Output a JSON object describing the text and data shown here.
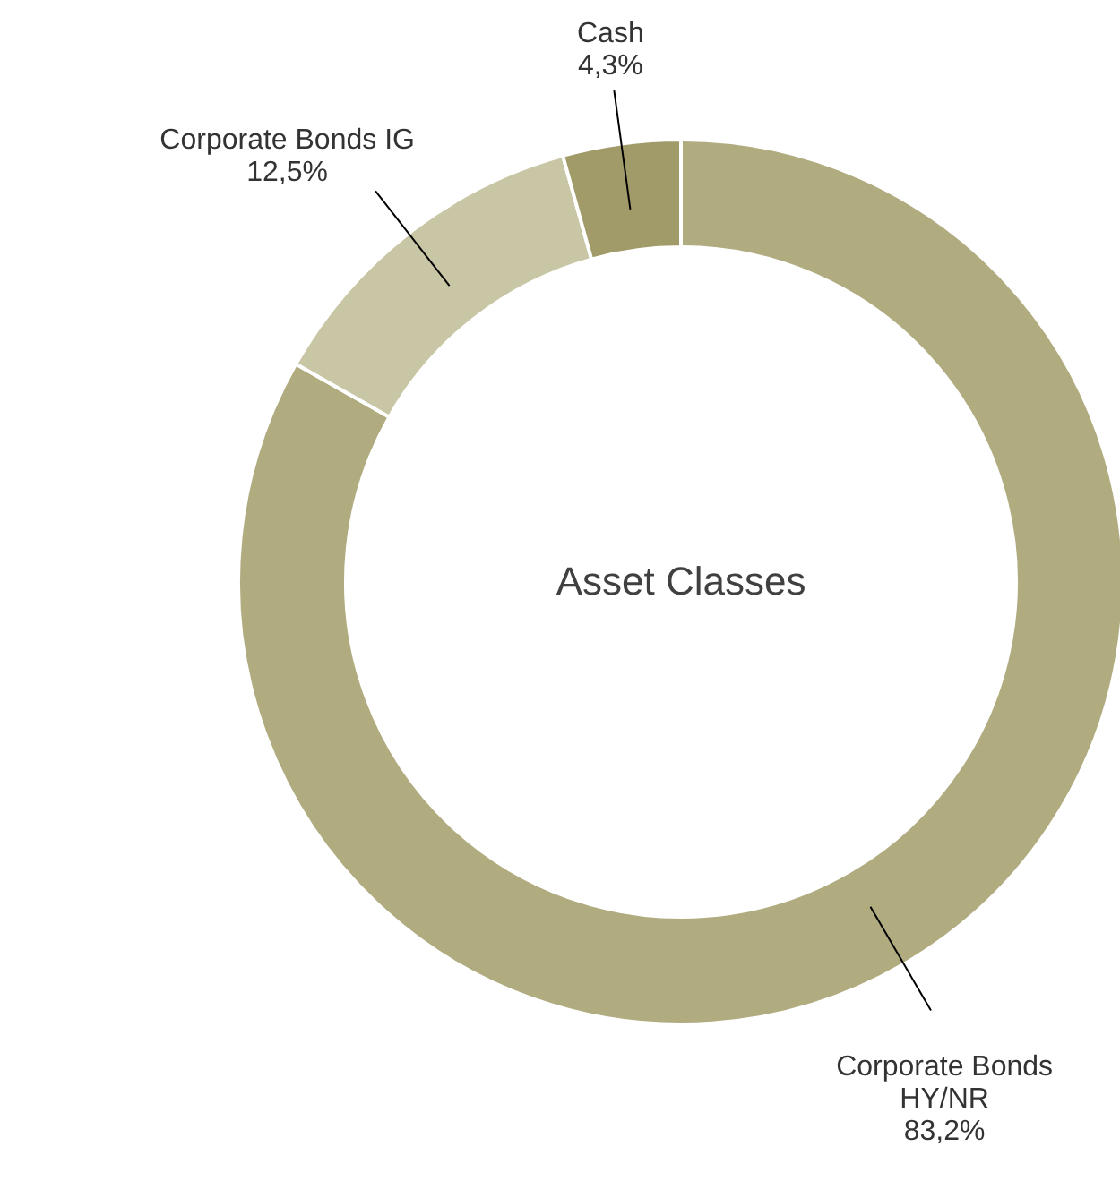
{
  "chart_data": {
    "type": "donut",
    "title": "Asset Classes",
    "categories": [
      "Corporate Bonds HY/NR",
      "Corporate Bonds IG",
      "Cash"
    ],
    "values": [
      83.2,
      12.5,
      4.3
    ],
    "value_labels": [
      "83,2%",
      "12,5%",
      "4,3%"
    ],
    "colors": [
      "#b0ac80",
      "#c8c6a4",
      "#a09b68"
    ]
  }
}
